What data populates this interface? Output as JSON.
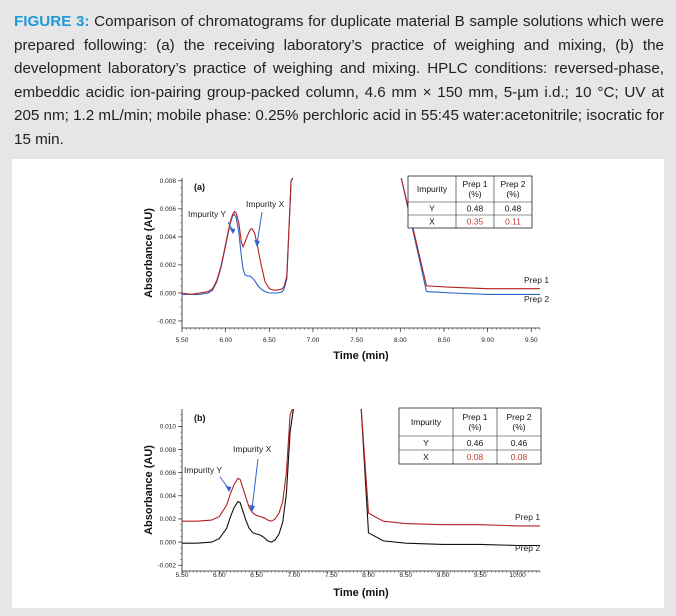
{
  "caption": {
    "lead": "FIGURE 3:",
    "text": " Comparison of chromatograms for duplicate material B sample solutions which were prepared following: (a) the receiving laboratory’s practice of weighing and mixing, (b) the development laboratory’s practice of weighing and mixing. HPLC conditions: reversed-phase, embeddic acidic ion-pairing group-packed column, 4.6 mm × 150 mm, 5-µm i.d.; 10 °C; UV at 205 nm; 1.2 mL/min; mobile phase: 0.25% perchloric acid in 55:45 water:acetonitrile; isocratic for 15 min."
  },
  "colors": {
    "prep1": "#b22222",
    "prep2": "#2e64c8",
    "prep2_b": "#111111",
    "caption_lead": "#1f9ad7",
    "red_value": "#c0392b"
  },
  "chart_data": [
    {
      "type": "line",
      "panel_label": "(a)",
      "xlabel": "Time (min)",
      "ylabel": "Absorbance (AU)",
      "xlim": [
        5.5,
        9.6
      ],
      "ylim": [
        -0.0025,
        0.0082
      ],
      "x_ticks": [
        "5.50",
        "6.00",
        "6.50",
        "7.00",
        "7.50",
        "8.00",
        "8.50",
        "9.00",
        "9.50"
      ],
      "y_ticks": [
        "-0.002",
        "0.000",
        "0.002",
        "0.004",
        "0.006",
        "0.008"
      ],
      "series": [
        {
          "name": "Prep 1",
          "x": [
            5.5,
            5.6,
            5.7,
            5.8,
            5.85,
            5.9,
            5.95,
            6.0,
            6.05,
            6.08,
            6.1,
            6.12,
            6.15,
            6.18,
            6.2,
            6.22,
            6.25,
            6.28,
            6.3,
            6.33,
            6.36,
            6.4,
            6.45,
            6.5,
            6.55,
            6.6,
            6.65,
            6.67,
            6.7,
            6.75,
            6.8,
            6.9,
            7.0,
            7.2,
            7.5,
            7.8,
            8.0,
            8.3,
            8.6,
            9.0,
            9.4,
            9.6
          ],
          "y": [
            0.0,
            -0.0001,
            0.0,
            0.0001,
            0.0003,
            0.0009,
            0.002,
            0.0035,
            0.005,
            0.0056,
            0.0058,
            0.0057,
            0.005,
            0.0036,
            0.0033,
            0.0036,
            0.0041,
            0.0045,
            0.0046,
            0.0043,
            0.0035,
            0.0022,
            0.0008,
            0.0003,
            0.0002,
            0.0002,
            0.0003,
            0.0005,
            0.0012,
            0.008,
            0.0085,
            0.0085,
            0.0085,
            0.0085,
            0.0085,
            0.0085,
            0.0085,
            0.0005,
            0.0004,
            0.0003,
            0.0003,
            0.0003
          ]
        },
        {
          "name": "Prep 2",
          "x": [
            5.5,
            5.6,
            5.7,
            5.8,
            5.85,
            5.9,
            5.95,
            6.0,
            6.05,
            6.08,
            6.1,
            6.12,
            6.15,
            6.18,
            6.2,
            6.22,
            6.25,
            6.28,
            6.3,
            6.33,
            6.36,
            6.4,
            6.45,
            6.5,
            6.55,
            6.6,
            6.65,
            6.67,
            6.7,
            6.75,
            6.8,
            6.9,
            7.0,
            7.2,
            7.5,
            7.8,
            8.0,
            8.3,
            8.6,
            9.0,
            9.4,
            9.6
          ],
          "y": [
            -0.0001,
            -0.0001,
            -0.0001,
            0.0,
            0.0002,
            0.0008,
            0.0019,
            0.0034,
            0.0049,
            0.0055,
            0.0056,
            0.0054,
            0.0043,
            0.0026,
            0.0017,
            0.0013,
            0.0012,
            0.0012,
            0.0011,
            0.0009,
            0.0006,
            0.0003,
            0.0001,
            0.0,
            0.0,
            0.0,
            0.0001,
            0.0003,
            0.001,
            0.008,
            0.0085,
            0.0085,
            0.0085,
            0.0085,
            0.0085,
            0.0085,
            0.0085,
            0.0001,
            0.0,
            -0.0001,
            -0.0001,
            -0.0001
          ]
        }
      ],
      "annotations": [
        "Impurity Y",
        "Impurity X"
      ],
      "table": {
        "headers": [
          "Impurity",
          "Prep 1\n(%)",
          "Prep 2\n(%)"
        ],
        "rows": [
          [
            "Y",
            "0.48",
            "0.48"
          ],
          [
            "X",
            "0.35",
            "0.11"
          ]
        ]
      },
      "series_labels": [
        "Prep 1",
        "Prep 2"
      ]
    },
    {
      "type": "line",
      "panel_label": "(b)",
      "xlabel": "Time (min)",
      "ylabel": "Absorbance (AU)",
      "xlim": [
        5.5,
        10.3
      ],
      "ylim": [
        -0.0025,
        0.0115
      ],
      "x_ticks": [
        "5.50",
        "6.00",
        "6.50",
        "7.00",
        "7.50",
        "8.00",
        "8.50",
        "9.00",
        "9.50",
        "10.00"
      ],
      "y_ticks": [
        "-0.002",
        "0.000",
        "0.002",
        "0.004",
        "0.006",
        "0.008",
        "0.010"
      ],
      "series": [
        {
          "name": "Prep 1",
          "x": [
            5.5,
            5.7,
            5.9,
            6.0,
            6.1,
            6.15,
            6.2,
            6.25,
            6.28,
            6.3,
            6.35,
            6.4,
            6.45,
            6.5,
            6.55,
            6.6,
            6.65,
            6.7,
            6.75,
            6.8,
            6.85,
            6.9,
            6.95,
            7.0,
            7.1,
            7.5,
            7.9,
            8.0,
            8.2,
            8.5,
            9.0,
            9.5,
            10.0,
            10.3
          ],
          "y": [
            0.0018,
            0.0018,
            0.0019,
            0.0022,
            0.0032,
            0.0042,
            0.005,
            0.0055,
            0.0054,
            0.005,
            0.004,
            0.003,
            0.0025,
            0.0023,
            0.0022,
            0.0021,
            0.0019,
            0.0018,
            0.002,
            0.0025,
            0.0035,
            0.006,
            0.011,
            0.0118,
            0.0118,
            0.0118,
            0.0118,
            0.0025,
            0.0018,
            0.0016,
            0.0015,
            0.0015,
            0.0014,
            0.0014
          ]
        },
        {
          "name": "Prep 2",
          "x": [
            5.5,
            5.7,
            5.9,
            6.0,
            6.1,
            6.15,
            6.2,
            6.25,
            6.28,
            6.3,
            6.35,
            6.4,
            6.45,
            6.5,
            6.55,
            6.6,
            6.65,
            6.7,
            6.75,
            6.8,
            6.85,
            6.9,
            6.95,
            7.0,
            7.1,
            7.5,
            7.9,
            8.0,
            8.2,
            8.5,
            9.0,
            9.5,
            10.0,
            10.3
          ],
          "y": [
            -0.0001,
            -0.0001,
            0.0,
            0.0003,
            0.0012,
            0.0022,
            0.003,
            0.0035,
            0.0034,
            0.003,
            0.002,
            0.0012,
            0.0008,
            0.0007,
            0.0006,
            0.0004,
            0.0001,
            0.0,
            0.0002,
            0.0007,
            0.0017,
            0.0042,
            0.0095,
            0.0118,
            0.0118,
            0.0118,
            0.0118,
            0.0008,
            0.0001,
            -0.0001,
            -0.0002,
            -0.0002,
            -0.0003,
            -0.0003
          ]
        }
      ],
      "annotations": [
        "Impurity Y",
        "Impurity X"
      ],
      "table": {
        "headers": [
          "Impurity",
          "Prep 1\n(%)",
          "Prep 2\n(%)"
        ],
        "rows": [
          [
            "Y",
            "0.46",
            "0.46"
          ],
          [
            "X",
            "0.08",
            "0.08"
          ]
        ]
      },
      "series_labels": [
        "Prep 1",
        "Prep 2"
      ]
    }
  ]
}
